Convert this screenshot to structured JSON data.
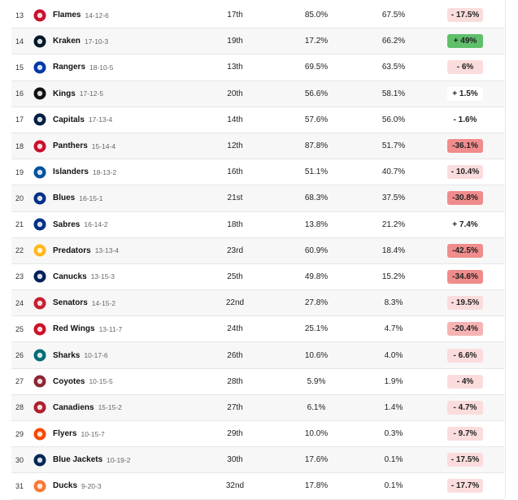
{
  "rows": [
    {
      "rank": "13",
      "team": "Flames",
      "record": "14-12-6",
      "pr": "17th",
      "col1": "85.0%",
      "col2": "67.5%",
      "change": "- 17.5%",
      "color": "#c8102e",
      "icon": "flames-logo",
      "tone": "light"
    },
    {
      "rank": "14",
      "team": "Kraken",
      "record": "17-10-3",
      "pr": "19th",
      "col1": "17.2%",
      "col2": "66.2%",
      "change": "+ 49%",
      "color": "#001628",
      "icon": "kraken-logo",
      "tone": "green"
    },
    {
      "rank": "15",
      "team": "Rangers",
      "record": "18-10-5",
      "pr": "13th",
      "col1": "69.5%",
      "col2": "63.5%",
      "change": "- 6%",
      "color": "#0038a8",
      "icon": "rangers-logo",
      "tone": "light"
    },
    {
      "rank": "16",
      "team": "Kings",
      "record": "17-12-5",
      "pr": "20th",
      "col1": "56.6%",
      "col2": "58.1%",
      "change": "+ 1.5%",
      "color": "#111111",
      "icon": "kings-logo",
      "tone": "neutral"
    },
    {
      "rank": "17",
      "team": "Capitals",
      "record": "17-13-4",
      "pr": "14th",
      "col1": "57.6%",
      "col2": "56.0%",
      "change": "- 1.6%",
      "color": "#041e42",
      "icon": "capitals-logo",
      "tone": "neutral"
    },
    {
      "rank": "18",
      "team": "Panthers",
      "record": "15-14-4",
      "pr": "12th",
      "col1": "87.8%",
      "col2": "51.7%",
      "change": "-36.1%",
      "color": "#c8102e",
      "icon": "panthers-logo",
      "tone": "strong"
    },
    {
      "rank": "19",
      "team": "Islanders",
      "record": "18-13-2",
      "pr": "16th",
      "col1": "51.1%",
      "col2": "40.7%",
      "change": "- 10.4%",
      "color": "#00539b",
      "icon": "islanders-logo",
      "tone": "light"
    },
    {
      "rank": "20",
      "team": "Blues",
      "record": "16-15-1",
      "pr": "21st",
      "col1": "68.3%",
      "col2": "37.5%",
      "change": "-30.8%",
      "color": "#002f87",
      "icon": "blues-logo",
      "tone": "strong"
    },
    {
      "rank": "21",
      "team": "Sabres",
      "record": "16-14-2",
      "pr": "18th",
      "col1": "13.8%",
      "col2": "21.2%",
      "change": "+ 7.4%",
      "color": "#003087",
      "icon": "sabres-logo",
      "tone": "neutral"
    },
    {
      "rank": "22",
      "team": "Predators",
      "record": "13-13-4",
      "pr": "23rd",
      "col1": "60.9%",
      "col2": "18.4%",
      "change": "-42.5%",
      "color": "#ffb81c",
      "icon": "predators-logo",
      "tone": "strong"
    },
    {
      "rank": "23",
      "team": "Canucks",
      "record": "13-15-3",
      "pr": "25th",
      "col1": "49.8%",
      "col2": "15.2%",
      "change": "-34.6%",
      "color": "#00205b",
      "icon": "canucks-logo",
      "tone": "strong"
    },
    {
      "rank": "24",
      "team": "Senators",
      "record": "14-15-2",
      "pr": "22nd",
      "col1": "27.8%",
      "col2": "8.3%",
      "change": "- 19.5%",
      "color": "#c52032",
      "icon": "senators-logo",
      "tone": "light"
    },
    {
      "rank": "25",
      "team": "Red Wings",
      "record": "13-11-7",
      "pr": "24th",
      "col1": "25.1%",
      "col2": "4.7%",
      "change": "-20.4%",
      "color": "#ce1126",
      "icon": "red-wings-logo",
      "tone": "mid"
    },
    {
      "rank": "26",
      "team": "Sharks",
      "record": "10-17-6",
      "pr": "26th",
      "col1": "10.6%",
      "col2": "4.0%",
      "change": "- 6.6%",
      "color": "#006d75",
      "icon": "sharks-logo",
      "tone": "light"
    },
    {
      "rank": "27",
      "team": "Coyotes",
      "record": "10-15-5",
      "pr": "28th",
      "col1": "5.9%",
      "col2": "1.9%",
      "change": "- 4%",
      "color": "#8c2633",
      "icon": "coyotes-logo",
      "tone": "light"
    },
    {
      "rank": "28",
      "team": "Canadiens",
      "record": "15-15-2",
      "pr": "27th",
      "col1": "6.1%",
      "col2": "1.4%",
      "change": "- 4.7%",
      "color": "#af1e2d",
      "icon": "canadiens-logo",
      "tone": "light"
    },
    {
      "rank": "29",
      "team": "Flyers",
      "record": "10-15-7",
      "pr": "29th",
      "col1": "10.0%",
      "col2": "0.3%",
      "change": "- 9.7%",
      "color": "#f74902",
      "icon": "flyers-logo",
      "tone": "light"
    },
    {
      "rank": "30",
      "team": "Blue Jackets",
      "record": "10-19-2",
      "pr": "30th",
      "col1": "17.6%",
      "col2": "0.1%",
      "change": "- 17.5%",
      "color": "#002654",
      "icon": "blue-jackets-logo",
      "tone": "light"
    },
    {
      "rank": "31",
      "team": "Ducks",
      "record": "9-20-3",
      "pr": "32nd",
      "col1": "17.8%",
      "col2": "0.1%",
      "change": "- 17.7%",
      "color": "#f47a38",
      "icon": "ducks-logo",
      "tone": "light"
    }
  ]
}
